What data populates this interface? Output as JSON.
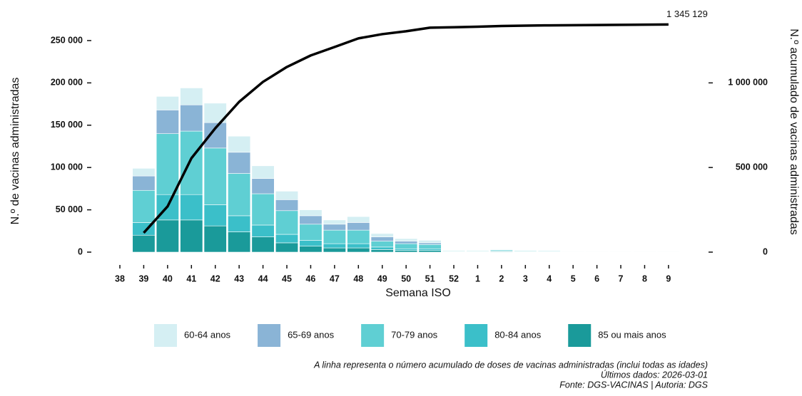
{
  "chart_data": {
    "type": "bar",
    "categories": [
      "38",
      "39",
      "40",
      "41",
      "42",
      "43",
      "44",
      "45",
      "46",
      "47",
      "48",
      "49",
      "50",
      "51",
      "52",
      "1",
      "2",
      "3",
      "4",
      "5",
      "6",
      "7",
      "8",
      "9"
    ],
    "x_label": "Semana ISO",
    "y_label": "N.º de vacinas administradas",
    "y2_label": "N.º acumulado de vacinas administradas",
    "stacked": true,
    "ylim": [
      0,
      270000
    ],
    "yticks": [
      0,
      {
        "value": 50000,
        "label": "50 000"
      },
      {
        "value": 100000,
        "label": "100 000"
      },
      {
        "value": 150000,
        "label": "150 000"
      },
      {
        "value": 200000,
        "label": "200 000"
      },
      {
        "value": 250000,
        "label": "250 000"
      }
    ],
    "y2lim": [
      0,
      1350000
    ],
    "y2ticks": [
      0,
      {
        "value": 500000,
        "label": "500 000"
      },
      {
        "value": 1000000,
        "label": "1 000 000"
      }
    ],
    "series": [
      {
        "name": "85 ou mais anos",
        "color": "#1a9a9a",
        "values": [
          null,
          20000,
          38000,
          38000,
          31000,
          24000,
          18000,
          11000,
          7000,
          5000,
          5000,
          3000,
          2000,
          2000,
          500,
          500,
          700,
          400,
          400,
          300,
          200,
          200,
          200,
          200
        ]
      },
      {
        "name": "80-84 anos",
        "color": "#3bbfc9",
        "values": [
          null,
          15000,
          30000,
          30000,
          25000,
          19000,
          14000,
          10000,
          7000,
          5000,
          5000,
          3000,
          2000,
          2000,
          500,
          500,
          700,
          400,
          400,
          300,
          200,
          200,
          200,
          200
        ]
      },
      {
        "name": "70-79 anos",
        "color": "#5fcfd3",
        "values": [
          null,
          38000,
          72000,
          75000,
          67000,
          50000,
          37000,
          28000,
          19000,
          16000,
          16000,
          7000,
          6000,
          5000,
          800,
          800,
          1200,
          800,
          700,
          400,
          300,
          300,
          300,
          300
        ]
      },
      {
        "name": "65-69 anos",
        "color": "#8ab4d6",
        "values": [
          null,
          17000,
          28000,
          31000,
          30000,
          25000,
          18000,
          13000,
          10000,
          7000,
          9000,
          5000,
          3000,
          2000,
          300,
          300,
          500,
          300,
          300,
          200,
          100,
          100,
          100,
          100
        ]
      },
      {
        "name": "60-64 anos",
        "color": "#d5eff3",
        "values": [
          null,
          9000,
          16000,
          20000,
          23000,
          19000,
          15000,
          10000,
          7000,
          5000,
          7000,
          4000,
          3000,
          3000,
          300,
          400,
          600,
          300,
          300,
          200,
          100,
          100,
          100,
          100
        ]
      },
      {
        "type": "line",
        "axis": "y2",
        "color": "#000000",
        "values": [
          null,
          114000,
          270000,
          555000,
          732000,
          888000,
          1006000,
          1094000,
          1162000,
          1212000,
          1263000,
          1288000,
          1305000,
          1326000,
          1329000,
          1332000,
          1336000,
          1338000,
          1340000,
          1341000,
          1342000,
          1343000,
          1344000,
          1345129
        ],
        "value_labels": [
          null,
          null,
          null,
          null,
          null,
          null,
          null,
          null,
          null,
          null,
          null,
          null,
          null,
          null,
          null,
          null,
          null,
          null,
          null,
          null,
          null,
          null,
          null,
          "1 345 129"
        ]
      }
    ],
    "legend_order": [
      4,
      3,
      2,
      1,
      0
    ],
    "notes": [
      "A linha representa o número acumulado de doses de vacinas administradas (inclui todas as idades)",
      "Últimos dados: 2026-03-01",
      "Fonte: DGS-VACINAS | Autoria: DGS"
    ]
  }
}
